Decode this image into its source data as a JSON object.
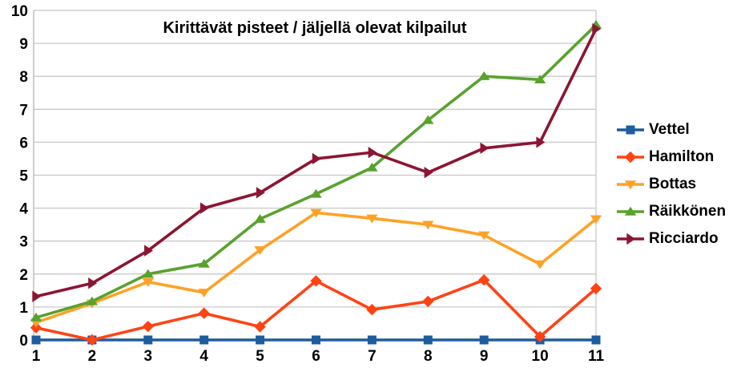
{
  "chart_data": {
    "type": "line",
    "title": "Kirittävät pisteet / jäljellä olevat kilpailut",
    "xlabel": "",
    "ylabel": "",
    "x": [
      1,
      2,
      3,
      4,
      5,
      6,
      7,
      8,
      9,
      10,
      11
    ],
    "x_tick_labels": [
      "1",
      "2",
      "3",
      "4",
      "5",
      "6",
      "7",
      "8",
      "9",
      "10",
      "11"
    ],
    "y_ticks": [
      0,
      1,
      2,
      3,
      4,
      5,
      6,
      7,
      8,
      9,
      10
    ],
    "y_tick_labels": [
      "0",
      "1",
      "2",
      "3",
      "4",
      "5",
      "6",
      "7",
      "8",
      "9",
      "10"
    ],
    "xlim": [
      1,
      11
    ],
    "ylim": [
      0,
      10
    ],
    "grid": "horizontal",
    "legend_position": "right",
    "colors": {
      "background": "#ffffff",
      "gridline": "#c8c8c8",
      "axis": "#b4b4b4",
      "text": "#000000"
    },
    "series": [
      {
        "name": "Vettel",
        "color": "#1e5c9e",
        "marker": "square",
        "values": [
          0,
          0,
          0,
          0,
          0,
          0,
          0,
          0,
          0,
          0,
          0
        ]
      },
      {
        "name": "Hamilton",
        "color": "#ff4313",
        "marker": "diamond",
        "values": [
          0.37,
          0,
          0.41,
          0.81,
          0.4,
          1.79,
          0.92,
          1.17,
          1.82,
          0.1,
          1.56
        ]
      },
      {
        "name": "Bottas",
        "color": "#ffa126",
        "marker": "triangle-down",
        "values": [
          0.53,
          1.11,
          1.76,
          1.44,
          2.73,
          3.86,
          3.69,
          3.5,
          3.18,
          2.3,
          3.67
        ]
      },
      {
        "name": "Räikkönen",
        "color": "#58a22e",
        "marker": "triangle-up",
        "values": [
          0.68,
          1.17,
          2.0,
          2.31,
          3.67,
          4.43,
          5.23,
          6.67,
          8.0,
          7.9,
          9.56
        ]
      },
      {
        "name": "Ricciardo",
        "color": "#8c1533",
        "marker": "triangle-right",
        "values": [
          1.32,
          1.72,
          2.71,
          4.0,
          4.47,
          5.5,
          5.69,
          5.08,
          5.82,
          6.0,
          9.44
        ]
      }
    ]
  }
}
